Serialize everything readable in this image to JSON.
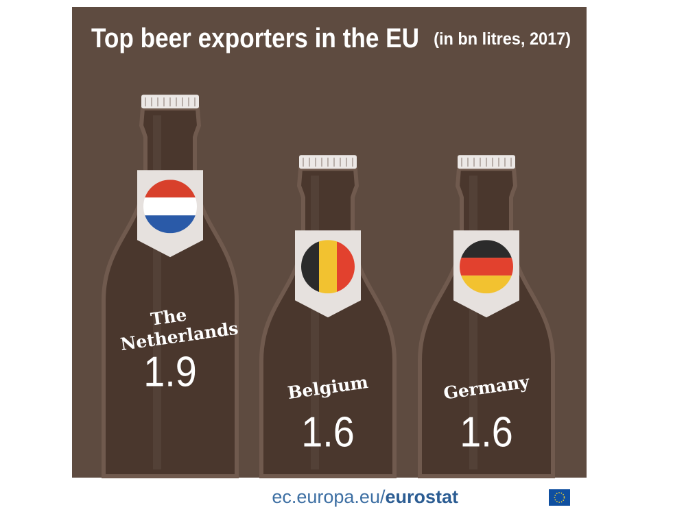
{
  "chart_data": {
    "type": "bottle",
    "title": "Top beer exporters in the EU",
    "subtitle": "(in bn litres, 2017)",
    "categories": [
      "The Netherlands",
      "Belgium",
      "Germany"
    ],
    "values": [
      1.9,
      1.6,
      1.6
    ],
    "color": "#4a372d",
    "background": "#5e4b40",
    "flags": [
      {
        "direction": "horizontal",
        "stripes": [
          "#d8402b",
          "#ffffff",
          "#2a5aa8"
        ]
      },
      {
        "direction": "vertical",
        "stripes": [
          "#2b2b2b",
          "#f2c230",
          "#e2412e"
        ]
      },
      {
        "direction": "horizontal",
        "stripes": [
          "#2b2b2b",
          "#e2412e",
          "#f2c230"
        ]
      }
    ]
  },
  "footer": {
    "source": "ec.europa.eu/",
    "brand": "eurostat"
  }
}
